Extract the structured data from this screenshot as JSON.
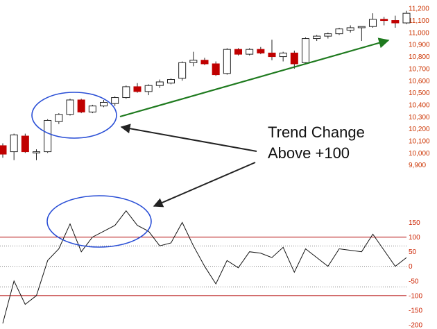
{
  "colors": {
    "up_fill": "#ffffff",
    "down_fill": "#c00000",
    "candle_outline": "#222222",
    "price_axis_text": "#cc3300",
    "osc_axis_text": "#cc2200",
    "cci_line": "#111111",
    "threshold_line": "#b00000",
    "trend_arrow": "#1e7a1e",
    "callout_arrow": "#222222",
    "ellipse": "#2a4fd6",
    "text": "#111111"
  },
  "annotation": {
    "line1": "Trend Change",
    "line2": "Above +100"
  },
  "chart_data": [
    {
      "type": "candlestick",
      "title": "",
      "xlabel": "",
      "ylabel": "",
      "ylim": [
        9800,
        11230
      ],
      "yticks": [
        "11,200",
        "11,100",
        "11,000",
        "10,900",
        "10,800",
        "10,700",
        "10,600",
        "10,500",
        "10,400",
        "10,300",
        "10,200",
        "10,100",
        "10,000",
        "9,900"
      ],
      "ytick_values": [
        11200,
        11100,
        11000,
        10900,
        10800,
        10700,
        10600,
        10500,
        10400,
        10300,
        10200,
        10100,
        10000,
        9900
      ],
      "candles": [
        {
          "o": 10060,
          "h": 10080,
          "l": 9960,
          "c": 9990
        },
        {
          "o": 10010,
          "h": 10160,
          "l": 9940,
          "c": 10150
        },
        {
          "o": 10140,
          "h": 10160,
          "l": 10000,
          "c": 10010
        },
        {
          "o": 10000,
          "h": 10030,
          "l": 9940,
          "c": 10010
        },
        {
          "o": 10010,
          "h": 10280,
          "l": 10000,
          "c": 10270
        },
        {
          "o": 10260,
          "h": 10330,
          "l": 10240,
          "c": 10320
        },
        {
          "o": 10320,
          "h": 10450,
          "l": 10310,
          "c": 10440
        },
        {
          "o": 10440,
          "h": 10450,
          "l": 10330,
          "c": 10340
        },
        {
          "o": 10340,
          "h": 10400,
          "l": 10330,
          "c": 10390
        },
        {
          "o": 10390,
          "h": 10440,
          "l": 10380,
          "c": 10420
        },
        {
          "o": 10410,
          "h": 10470,
          "l": 10390,
          "c": 10460
        },
        {
          "o": 10460,
          "h": 10560,
          "l": 10450,
          "c": 10550
        },
        {
          "o": 10550,
          "h": 10580,
          "l": 10500,
          "c": 10510
        },
        {
          "o": 10510,
          "h": 10570,
          "l": 10480,
          "c": 10560
        },
        {
          "o": 10560,
          "h": 10610,
          "l": 10540,
          "c": 10590
        },
        {
          "o": 10580,
          "h": 10620,
          "l": 10570,
          "c": 10610
        },
        {
          "o": 10620,
          "h": 10760,
          "l": 10600,
          "c": 10750
        },
        {
          "o": 10750,
          "h": 10840,
          "l": 10720,
          "c": 10770
        },
        {
          "o": 10770,
          "h": 10790,
          "l": 10730,
          "c": 10740
        },
        {
          "o": 10740,
          "h": 10760,
          "l": 10640,
          "c": 10650
        },
        {
          "o": 10660,
          "h": 10870,
          "l": 10650,
          "c": 10860
        },
        {
          "o": 10860,
          "h": 10870,
          "l": 10810,
          "c": 10820
        },
        {
          "o": 10820,
          "h": 10870,
          "l": 10810,
          "c": 10860
        },
        {
          "o": 10860,
          "h": 10880,
          "l": 10820,
          "c": 10830
        },
        {
          "o": 10830,
          "h": 10940,
          "l": 10770,
          "c": 10800
        },
        {
          "o": 10800,
          "h": 10840,
          "l": 10760,
          "c": 10830
        },
        {
          "o": 10830,
          "h": 10850,
          "l": 10700,
          "c": 10740
        },
        {
          "o": 10750,
          "h": 10960,
          "l": 10740,
          "c": 10950
        },
        {
          "o": 10950,
          "h": 10980,
          "l": 10930,
          "c": 10970
        },
        {
          "o": 10970,
          "h": 11000,
          "l": 10950,
          "c": 10990
        },
        {
          "o": 10990,
          "h": 11040,
          "l": 10980,
          "c": 11030
        },
        {
          "o": 11020,
          "h": 11060,
          "l": 11000,
          "c": 11040
        },
        {
          "o": 11040,
          "h": 11050,
          "l": 10930,
          "c": 11050
        },
        {
          "o": 11050,
          "h": 11160,
          "l": 11040,
          "c": 11110
        },
        {
          "o": 11110,
          "h": 11130,
          "l": 11060,
          "c": 11100
        },
        {
          "o": 11100,
          "h": 11140,
          "l": 11040,
          "c": 11080
        },
        {
          "o": 11080,
          "h": 11180,
          "l": 11070,
          "c": 11160
        }
      ]
    },
    {
      "type": "line",
      "title": "",
      "xlabel": "",
      "ylabel": "",
      "ylim": [
        -200,
        175
      ],
      "yticks": [
        "150",
        "100",
        "50",
        "0",
        "-50",
        "-100",
        "-150",
        "-200"
      ],
      "ytick_values": [
        150,
        100,
        50,
        0,
        -50,
        -100,
        -150,
        -200
      ],
      "reference_lines": {
        "solid": [
          100,
          -100
        ],
        "dotted": [
          70,
          0,
          -70
        ]
      },
      "series": [
        {
          "values": [
            -195,
            -50,
            -130,
            -100,
            20,
            60,
            145,
            50,
            100,
            120,
            140,
            190,
            140,
            120,
            70,
            80,
            150,
            70,
            0,
            -60,
            20,
            -5,
            50,
            45,
            30,
            65,
            -20,
            60,
            30,
            0,
            60,
            55,
            50,
            110,
            55,
            0,
            30
          ]
        }
      ]
    }
  ]
}
